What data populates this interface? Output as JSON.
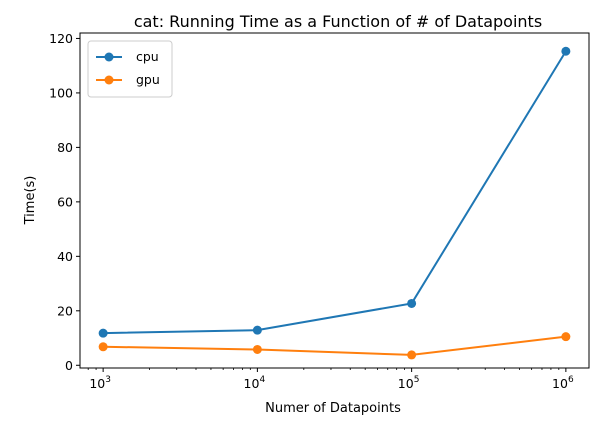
{
  "chart_data": {
    "type": "line",
    "title": "cat: Running Time as a Function of # of Datapoints",
    "xlabel": "Numer of Datapoints",
    "ylabel": "Time(s)",
    "xscale": "log",
    "x": [
      1000,
      10000,
      100000,
      1000000
    ],
    "x_tick_base": "10",
    "x_tick_exponents": [
      "3",
      "4",
      "5",
      "6"
    ],
    "y_ticks": [
      "0",
      "20",
      "40",
      "60",
      "80",
      "100",
      "120"
    ],
    "ylim": [
      -1,
      122
    ],
    "legend_position": "top-left",
    "series": [
      {
        "name": "cpu",
        "color": "#1f77b4",
        "values": [
          11.8,
          12.9,
          22.7,
          115.3
        ]
      },
      {
        "name": "gpu",
        "color": "#ff7f0e",
        "values": [
          6.8,
          5.8,
          3.8,
          10.5
        ]
      }
    ]
  }
}
